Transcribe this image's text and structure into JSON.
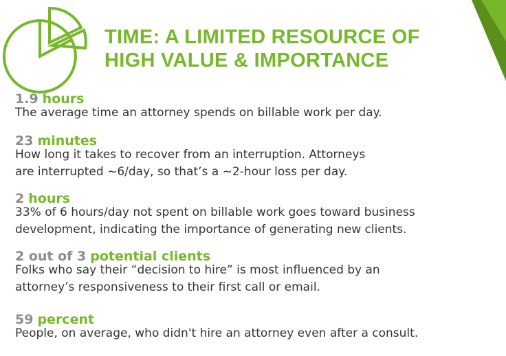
{
  "title": [
    "TIME: A LIMITED RESOURCE OF",
    "HIGH VALUE & IMPORTANCE"
  ],
  "items": [
    {
      "figure": "1.9",
      "unit": "hours",
      "description": [
        "The average time an attorney spends on billable work per day."
      ]
    },
    {
      "figure": "23",
      "unit": "minutes",
      "description": [
        "How long it takes to recover from an interruption. Attorneys",
        "are interrupted ~6/day, so that’s a ~2-hour loss per day."
      ]
    },
    {
      "figure": "2",
      "unit": "hours",
      "description": [
        "33% of 6 hours/day not spent on billable work goes toward business",
        "development, indicating the importance of generating new clients."
      ]
    },
    {
      "figure": "2 out of 3",
      "unit": "potential clients",
      "description": [
        "Folks who say their “decision to hire” is most influenced by an",
        "attorney’s responsiveness to their first call or email."
      ]
    },
    {
      "figure": "59",
      "unit": "percent",
      "description": [
        "People, on average, who didn't hire an attorney even after a consult."
      ]
    }
  ]
}
